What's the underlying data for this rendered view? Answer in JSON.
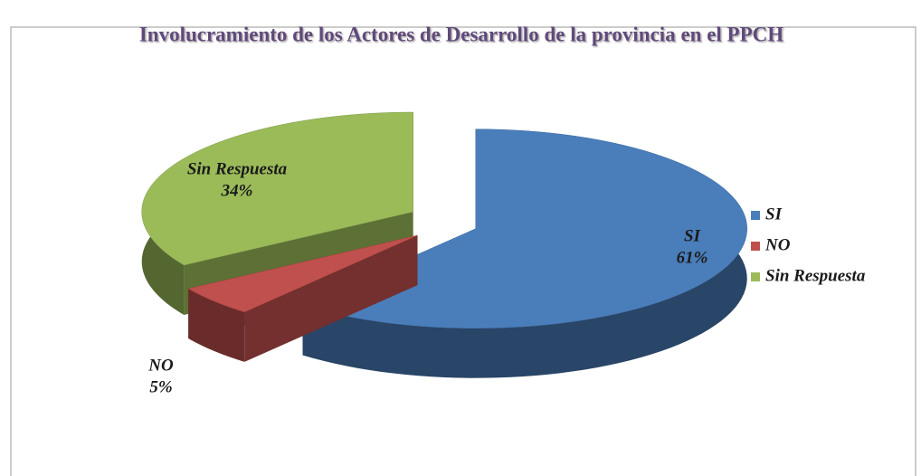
{
  "chart_data": {
    "type": "pie",
    "title": "Involucramiento de los Actores de Desarrollo de la provincia en el PPCH",
    "categories": [
      "SI",
      "NO",
      "Sin Respuesta"
    ],
    "values": [
      61,
      5,
      34
    ],
    "value_labels": [
      "61%",
      "5%",
      "34%"
    ],
    "colors": [
      "#4a7ebb",
      "#c0504d",
      "#9bbb59"
    ],
    "legend": "right"
  }
}
